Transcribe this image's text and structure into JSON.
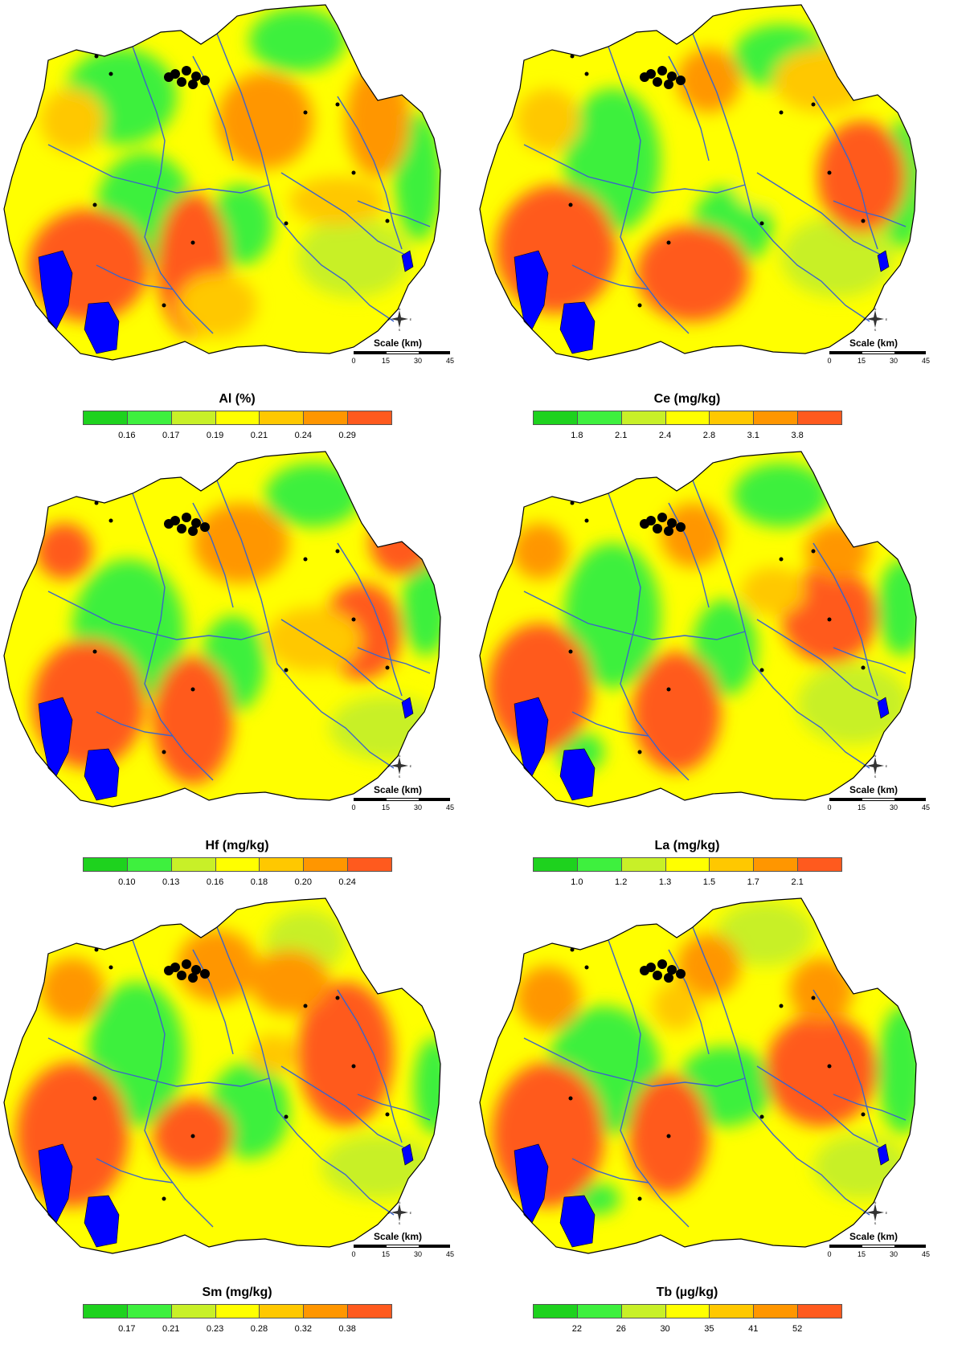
{
  "colors": {
    "ramp": [
      "#1ed21e",
      "#3ef03e",
      "#c8f028",
      "#ffff00",
      "#ffc800",
      "#ff9600",
      "#ff5a1e"
    ],
    "water": "#0000ff",
    "river": "#3c64c8",
    "urban": "#000000"
  },
  "panels": [
    {
      "id": "al",
      "title": "Al (%)",
      "ticks": [
        "0.16",
        "0.17",
        "0.19",
        "0.21",
        "0.24",
        "0.29"
      ],
      "scale": {
        "label": "Scale (km)",
        "ticks": [
          "0",
          "15",
          "30",
          "45"
        ]
      },
      "compass": [
        "N",
        "S",
        "E",
        "W"
      ]
    },
    {
      "id": "ce",
      "title": "Ce (mg/kg)",
      "ticks": [
        "1.8",
        "2.1",
        "2.4",
        "2.8",
        "3.1",
        "3.8"
      ],
      "scale": {
        "label": "Scale (km)",
        "ticks": [
          "0",
          "15",
          "30",
          "45"
        ]
      },
      "compass": [
        "N",
        "S",
        "E",
        "W"
      ]
    },
    {
      "id": "hf",
      "title": "Hf (mg/kg)",
      "ticks": [
        "0.10",
        "0.13",
        "0.16",
        "0.18",
        "0.20",
        "0.24"
      ],
      "scale": {
        "label": "Scale (km)",
        "ticks": [
          "0",
          "15",
          "30",
          "45"
        ]
      },
      "compass": [
        "N",
        "S",
        "E",
        "W"
      ]
    },
    {
      "id": "la",
      "title": "La (mg/kg)",
      "ticks": [
        "1.0",
        "1.2",
        "1.3",
        "1.5",
        "1.7",
        "2.1"
      ],
      "scale": {
        "label": "Scale (km)",
        "ticks": [
          "0",
          "15",
          "30",
          "45"
        ]
      },
      "compass": [
        "N",
        "S",
        "E",
        "W"
      ]
    },
    {
      "id": "sm",
      "title": "Sm (mg/kg)",
      "ticks": [
        "0.17",
        "0.21",
        "0.23",
        "0.28",
        "0.32",
        "0.38"
      ],
      "scale": {
        "label": "Scale (km)",
        "ticks": [
          "0",
          "15",
          "30",
          "45"
        ]
      },
      "compass": [
        "N",
        "S",
        "E",
        "W"
      ]
    },
    {
      "id": "tb",
      "title": "Tb (µg/kg)",
      "ticks": [
        "22",
        "26",
        "30",
        "35",
        "41",
        "52"
      ],
      "scale": {
        "label": "Scale (km)",
        "ticks": [
          "0",
          "15",
          "30",
          "45"
        ]
      },
      "compass": [
        "N",
        "S",
        "E",
        "W"
      ]
    }
  ]
}
